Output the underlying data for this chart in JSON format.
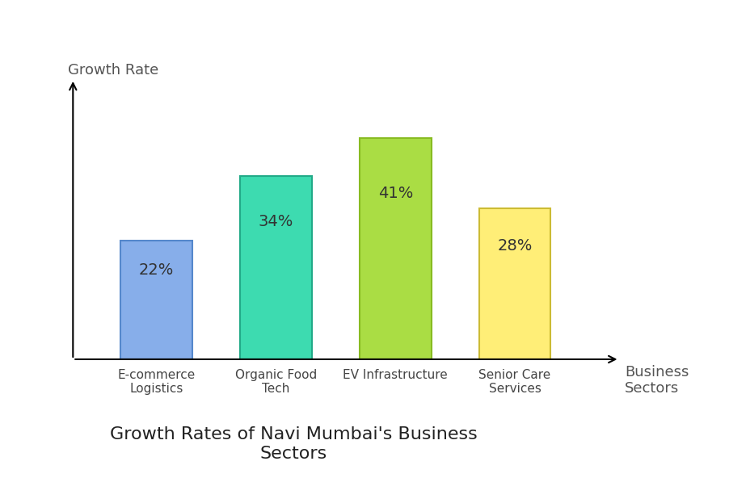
{
  "categories": [
    "E-commerce\nLogistics",
    "Organic Food\nTech",
    "EV Infrastructure",
    "Senior Care\nServices"
  ],
  "values": [
    22,
    34,
    41,
    28
  ],
  "bar_colors": [
    "#87AEEA",
    "#3DDBB0",
    "#AADD44",
    "#FFEE77"
  ],
  "bar_edgecolors": [
    "#5588CC",
    "#22AA88",
    "#88BB22",
    "#CCBB33"
  ],
  "labels": [
    "22%",
    "34%",
    "41%",
    "28%"
  ],
  "title": "Growth Rates of Navi Mumbai's Business\nSectors",
  "ylabel": "Growth Rate",
  "xlabel": "Business\nSectors",
  "title_fontsize": 16,
  "axis_label_fontsize": 13,
  "bar_label_fontsize": 14,
  "tick_label_fontsize": 11,
  "background_color": "#ffffff",
  "ylim": [
    0,
    50
  ],
  "bar_width": 0.6,
  "text_color": "#555555",
  "title_color": "#222222"
}
